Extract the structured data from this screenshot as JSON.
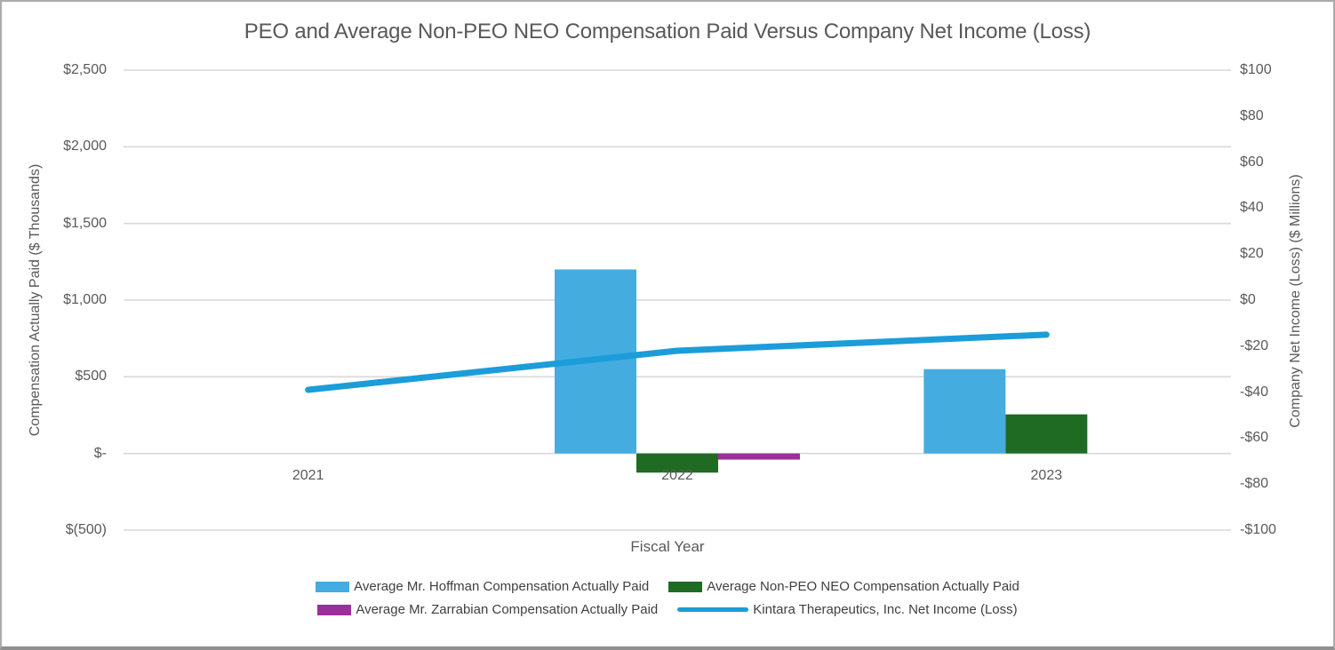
{
  "title": "PEO and Average Non-PEO NEO Compensation Paid Versus Company Net Income (Loss)",
  "colors": {
    "hoffman_bar": "#45ACDF",
    "neo_bar": "#1F6B24",
    "zarrabian_bar": "#9C2F9A",
    "net_income_line": "#1B9DD9",
    "gridline": "#D9D9D9",
    "axis_text": "#595959",
    "legend_text": "#404040"
  },
  "chart_data": {
    "type": "bar",
    "subtype": "combo-bar-line-dual-axis",
    "title": "PEO and Average Non-PEO NEO Compensation Paid Versus Company Net Income (Loss)",
    "xlabel": "Fiscal Year",
    "ylabel_left": "Compensation Actually Paid ($ Thousands)",
    "ylabel_right": "Company Net Income (Loss) ($ Millions)",
    "categories": [
      "2021",
      "2022",
      "2023"
    ],
    "series": [
      {
        "name": "Average Mr. Hoffman Compensation Actually Paid",
        "type": "bar",
        "axis": "left",
        "color": "#45ACDF",
        "values": [
          0,
          1200,
          550
        ]
      },
      {
        "name": "Average Non-PEO NEO Compensation Actually Paid",
        "type": "bar",
        "axis": "left",
        "color": "#1F6B24",
        "values": [
          0,
          -125,
          255
        ]
      },
      {
        "name": "Average Mr. Zarrabian Compensation Actually Paid",
        "type": "bar",
        "axis": "left",
        "color": "#9C2F9A",
        "values": [
          0,
          -40,
          0
        ]
      },
      {
        "name": "Kintara Therapeutics, Inc. Net Income (Loss)",
        "type": "line",
        "axis": "right",
        "color": "#1B9DD9",
        "values": [
          -39,
          -22,
          -15
        ]
      }
    ],
    "ylim_left": [
      -500,
      2500
    ],
    "ylim_right": [
      -100,
      100
    ],
    "left_ticks": [
      {
        "label": "$2,500",
        "value": 2500
      },
      {
        "label": "$2,000",
        "value": 2000
      },
      {
        "label": "$1,500",
        "value": 1500
      },
      {
        "label": "$1,000",
        "value": 1000
      },
      {
        "label": "$500",
        "value": 500
      },
      {
        "label": "$-",
        "value": 0
      },
      {
        "label": "$(500)",
        "value": -500
      }
    ],
    "right_ticks": [
      {
        "label": "$100",
        "value": 100
      },
      {
        "label": "$80",
        "value": 80
      },
      {
        "label": "$60",
        "value": 60
      },
      {
        "label": "$40",
        "value": 40
      },
      {
        "label": "$20",
        "value": 20
      },
      {
        "label": "$0",
        "value": 0
      },
      {
        "label": "-$20",
        "value": -20
      },
      {
        "label": "-$40",
        "value": -40
      },
      {
        "label": "-$60",
        "value": -60
      },
      {
        "label": "-$80",
        "value": -80
      },
      {
        "label": "-$100",
        "value": -100
      }
    ],
    "grid": true,
    "legend_position": "bottom"
  },
  "legend": {
    "items": [
      {
        "label": "Average Mr. Hoffman Compensation Actually Paid",
        "type": "bar",
        "color": "#45ACDF"
      },
      {
        "label": "Average Non-PEO NEO Compensation Actually Paid",
        "type": "bar",
        "color": "#1F6B24"
      },
      {
        "label": "Average Mr. Zarrabian Compensation Actually Paid",
        "type": "bar",
        "color": "#9C2F9A"
      },
      {
        "label": "Kintara Therapeutics, Inc. Net Income (Loss)",
        "type": "line",
        "color": "#1B9DD9"
      }
    ]
  }
}
